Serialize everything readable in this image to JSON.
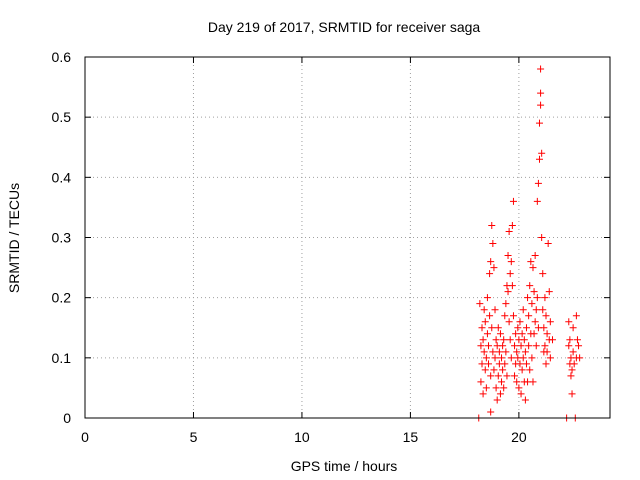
{
  "chart_data": {
    "type": "scatter",
    "title": "Day 219 of 2017, SRMTID for receiver saga",
    "xlabel": "GPS time / hours",
    "ylabel": "SRMTID / TECUs",
    "xlim": [
      0,
      24.2
    ],
    "ylim": [
      0,
      0.6
    ],
    "xticks": [
      0,
      5,
      10,
      15,
      20
    ],
    "xtick_labels": [
      "0",
      "5",
      "10",
      "15",
      "20"
    ],
    "yticks": [
      0,
      0.1,
      0.2,
      0.3,
      0.4,
      0.5,
      0.6
    ],
    "ytick_labels": [
      "0",
      "0.1",
      "0.2",
      "0.3",
      "0.4",
      "0.5",
      "0.6"
    ],
    "grid": true,
    "legend": "none",
    "marker": "+",
    "color": "#ff0000",
    "series": [
      {
        "points": [
          [
            18.15,
            0.0
          ],
          [
            18.2,
            0.19
          ],
          [
            18.25,
            0.12
          ],
          [
            18.25,
            0.06
          ],
          [
            18.3,
            0.09
          ],
          [
            18.3,
            0.15
          ],
          [
            18.35,
            0.13
          ],
          [
            18.35,
            0.04
          ],
          [
            18.4,
            0.18
          ],
          [
            18.4,
            0.11
          ],
          [
            18.45,
            0.08
          ],
          [
            18.45,
            0.16
          ],
          [
            18.5,
            0.1
          ],
          [
            18.5,
            0.05
          ],
          [
            18.55,
            0.14
          ],
          [
            18.55,
            0.2
          ],
          [
            18.6,
            0.12
          ],
          [
            18.6,
            0.09
          ],
          [
            18.65,
            0.24
          ],
          [
            18.65,
            0.17
          ],
          [
            18.7,
            0.26
          ],
          [
            18.7,
            0.07
          ],
          [
            18.7,
            0.01
          ],
          [
            18.75,
            0.32
          ],
          [
            18.75,
            0.15
          ],
          [
            18.8,
            0.29
          ],
          [
            18.8,
            0.11
          ],
          [
            18.85,
            0.25
          ],
          [
            18.85,
            0.08
          ],
          [
            18.9,
            0.18
          ],
          [
            18.9,
            0.1
          ],
          [
            18.95,
            0.05
          ],
          [
            18.95,
            0.13
          ],
          [
            19.0,
            0.12
          ],
          [
            19.0,
            0.03
          ],
          [
            19.05,
            0.07
          ],
          [
            19.05,
            0.15
          ],
          [
            19.1,
            0.09
          ],
          [
            19.1,
            0.11
          ],
          [
            19.15,
            0.04
          ],
          [
            19.15,
            0.14
          ],
          [
            19.2,
            0.06
          ],
          [
            19.2,
            0.1
          ],
          [
            19.25,
            0.08
          ],
          [
            19.25,
            0.12
          ],
          [
            19.3,
            0.05
          ],
          [
            19.3,
            0.13
          ],
          [
            19.35,
            0.17
          ],
          [
            19.35,
            0.09
          ],
          [
            19.4,
            0.19
          ],
          [
            19.4,
            0.11
          ],
          [
            19.45,
            0.22
          ],
          [
            19.45,
            0.07
          ],
          [
            19.5,
            0.21
          ],
          [
            19.5,
            0.27
          ],
          [
            19.55,
            0.16
          ],
          [
            19.55,
            0.31
          ],
          [
            19.6,
            0.24
          ],
          [
            19.6,
            0.13
          ],
          [
            19.65,
            0.26
          ],
          [
            19.65,
            0.1
          ],
          [
            19.7,
            0.22
          ],
          [
            19.7,
            0.32
          ],
          [
            19.75,
            0.36
          ],
          [
            19.75,
            0.17
          ],
          [
            19.8,
            0.12
          ],
          [
            19.8,
            0.07
          ],
          [
            19.85,
            0.09
          ],
          [
            19.85,
            0.14
          ],
          [
            19.9,
            0.06
          ],
          [
            19.9,
            0.11
          ],
          [
            19.95,
            0.1
          ],
          [
            19.95,
            0.15
          ],
          [
            20.0,
            0.13
          ],
          [
            20.0,
            0.05
          ],
          [
            20.05,
            0.16
          ],
          [
            20.05,
            0.09
          ],
          [
            20.1,
            0.12
          ],
          [
            20.1,
            0.04
          ],
          [
            20.15,
            0.14
          ],
          [
            20.15,
            0.08
          ],
          [
            20.2,
            0.1
          ],
          [
            20.2,
            0.18
          ],
          [
            20.25,
            0.06
          ],
          [
            20.25,
            0.13
          ],
          [
            20.3,
            0.03
          ],
          [
            20.3,
            0.11
          ],
          [
            20.35,
            0.09
          ],
          [
            20.35,
            0.15
          ],
          [
            20.4,
            0.06
          ],
          [
            20.4,
            0.2
          ],
          [
            20.45,
            0.12
          ],
          [
            20.45,
            0.17
          ],
          [
            20.5,
            0.08
          ],
          [
            20.5,
            0.22
          ],
          [
            20.55,
            0.14
          ],
          [
            20.55,
            0.26
          ],
          [
            20.6,
            0.1
          ],
          [
            20.6,
            0.19
          ],
          [
            20.65,
            0.25
          ],
          [
            20.65,
            0.06
          ],
          [
            20.7,
            0.21
          ],
          [
            20.7,
            0.14
          ],
          [
            20.75,
            0.16
          ],
          [
            20.75,
            0.27
          ],
          [
            20.8,
            0.12
          ],
          [
            20.8,
            0.18
          ],
          [
            20.85,
            0.2
          ],
          [
            20.85,
            0.36
          ],
          [
            20.9,
            0.39
          ],
          [
            20.9,
            0.15
          ],
          [
            20.95,
            0.43
          ],
          [
            20.95,
            0.49
          ],
          [
            21.0,
            0.52
          ],
          [
            21.0,
            0.54
          ],
          [
            21.0,
            0.58
          ],
          [
            21.05,
            0.44
          ],
          [
            21.05,
            0.3
          ],
          [
            21.1,
            0.24
          ],
          [
            21.1,
            0.18
          ],
          [
            21.15,
            0.15
          ],
          [
            21.15,
            0.11
          ],
          [
            21.2,
            0.2
          ],
          [
            21.2,
            0.12
          ],
          [
            21.25,
            0.17
          ],
          [
            21.25,
            0.09
          ],
          [
            21.3,
            0.14
          ],
          [
            21.3,
            0.11
          ],
          [
            21.35,
            0.29
          ],
          [
            21.4,
            0.21
          ],
          [
            21.4,
            0.13
          ],
          [
            21.45,
            0.1
          ],
          [
            21.45,
            0.16
          ],
          [
            21.55,
            0.13
          ],
          [
            22.2,
            0.0
          ],
          [
            22.3,
            0.16
          ],
          [
            22.3,
            0.12
          ],
          [
            22.35,
            0.09
          ],
          [
            22.35,
            0.13
          ],
          [
            22.4,
            0.07
          ],
          [
            22.4,
            0.1
          ],
          [
            22.45,
            0.08
          ],
          [
            22.45,
            0.04
          ],
          [
            22.5,
            0.11
          ],
          [
            22.5,
            0.15
          ],
          [
            22.55,
            0.09
          ],
          [
            22.6,
            0.0
          ],
          [
            22.65,
            0.17
          ],
          [
            22.65,
            0.1
          ],
          [
            22.7,
            0.13
          ],
          [
            22.75,
            0.12
          ],
          [
            22.8,
            0.1
          ]
        ]
      }
    ]
  }
}
